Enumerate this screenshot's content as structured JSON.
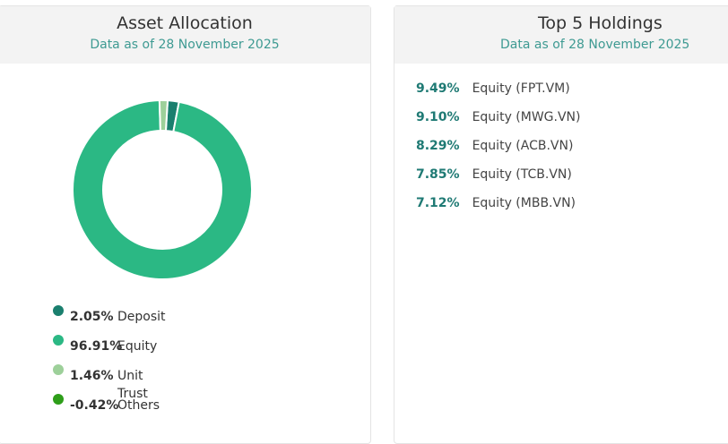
{
  "allocation": {
    "title": "Asset Allocation",
    "subtitle": "Data as of 28 November 2025",
    "chart_data": {
      "type": "donut",
      "categories": [
        "Deposit",
        "Equity",
        "Unit Trust",
        "Others"
      ],
      "values": [
        2.05,
        96.91,
        1.46,
        -0.42
      ],
      "value_labels": [
        "2.05%",
        "96.91%",
        "1.46%",
        "-0.42%"
      ],
      "colors": [
        "#1a7f6e",
        "#2bb884",
        "#9dd09a",
        "#2e9e1a"
      ]
    }
  },
  "holdings": {
    "title": "Top 5 Holdings",
    "subtitle": "Data as of 28 November 2025",
    "rows": [
      {
        "weight": "9.49%",
        "name": "Equity (FPT.VM)"
      },
      {
        "weight": "9.10%",
        "name": "Equity (MWG.VN)"
      },
      {
        "weight": "8.29%",
        "name": "Equity (ACB.VN)"
      },
      {
        "weight": "7.85%",
        "name": "Equity (TCB.VN)"
      },
      {
        "weight": "7.12%",
        "name": "Equity (MBB.VN)"
      }
    ]
  }
}
